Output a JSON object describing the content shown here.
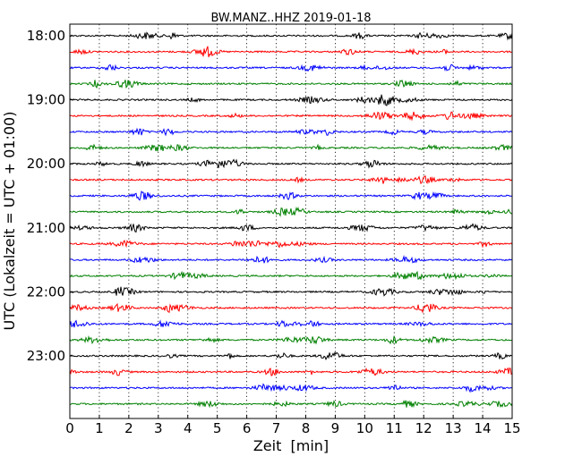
{
  "chart_data": {
    "type": "line",
    "title": "BW.MANZ..HHZ 2019-01-18",
    "xlabel": "Zeit  [min]",
    "ylabel": "UTC (Lokalzeit = UTC + 01:00)",
    "xlim": [
      0,
      15
    ],
    "x_ticks": [
      "0",
      "1",
      "2",
      "3",
      "4",
      "5",
      "6",
      "7",
      "8",
      "9",
      "10",
      "11",
      "12",
      "13",
      "14",
      "15"
    ],
    "y_ticks": [
      "18:00",
      "19:00",
      "20:00",
      "21:00",
      "22:00",
      "23:00"
    ],
    "grid": "vertical dotted",
    "row_interval_min": 15,
    "row_colors": [
      "#000000",
      "#ff0000",
      "#0000ff",
      "#008000"
    ],
    "rows": [
      "18:00",
      "18:15",
      "18:30",
      "18:45",
      "19:00",
      "19:15",
      "19:30",
      "19:45",
      "20:00",
      "20:15",
      "20:30",
      "20:45",
      "21:00",
      "21:15",
      "21:30",
      "21:45",
      "22:00",
      "22:15",
      "22:30",
      "22:45",
      "23:00",
      "23:15",
      "23:30",
      "23:45"
    ]
  }
}
